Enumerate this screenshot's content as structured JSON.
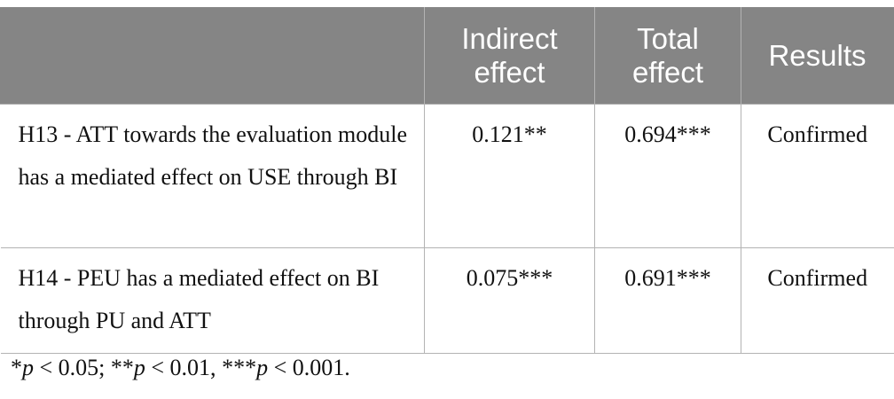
{
  "table": {
    "headers": [
      "",
      "Indirect effect",
      "Total effect",
      "Results"
    ],
    "rows": [
      {
        "hypothesis": "H13 - ATT towards the evaluation module has a mediated effect on USE through BI",
        "indirect_effect": "0.121**",
        "total_effect": "0.694***",
        "result": "Confirmed"
      },
      {
        "hypothesis": "H14 - PEU has a mediated effect on BI through PU and ATT",
        "indirect_effect": "0.075***",
        "total_effect": "0.691***",
        "result": "Confirmed"
      }
    ]
  },
  "footnote": {
    "p1_stars": "*",
    "p1_rest": " < 0.05; ",
    "p2_stars": "**",
    "p2_rest": " < 0.01, ",
    "p3_stars": "***",
    "p3_rest": " < 0.001.",
    "p_symbol": "p"
  }
}
